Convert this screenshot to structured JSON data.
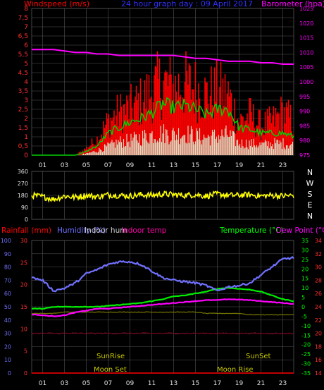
{
  "header": {
    "left": "Windspeed (m/s)",
    "center": "24 hour graph day : 09 April 2017",
    "right": "Barometer (hpa)"
  },
  "colors": {
    "red": "#ff0000",
    "green": "#00d000",
    "white": "#e0ffe0",
    "magenta": "#ff00ff",
    "yellow": "#ffff00",
    "blue": "#7070ff",
    "olive": "#707000",
    "grid": "#555555"
  },
  "x_hours": [
    "01",
    "03",
    "05",
    "07",
    "09",
    "11",
    "13",
    "15",
    "17",
    "19",
    "21",
    "23"
  ],
  "wind": {
    "y_ticks": [
      "0",
      "0,5",
      "1",
      "1,5",
      "2",
      "2,5",
      "3",
      "3,5",
      "4",
      "4,5",
      "5",
      "5,5",
      "6",
      "6,5",
      "7",
      "7,5",
      "8"
    ],
    "baro_ticks": [
      "975",
      "980",
      "985",
      "990",
      "995",
      "1000",
      "1005",
      "1010",
      "1015",
      "1020",
      "1025"
    ]
  },
  "direction": {
    "ticks": [
      "0",
      "90",
      "180",
      "270",
      "360"
    ],
    "compass": [
      "N",
      "W",
      "S",
      "E",
      "N"
    ]
  },
  "lower": {
    "left_label_1": "Rainfall (mm)",
    "left_label_2": "Humidity (%)",
    "left_label_3": "Indoor hum",
    "left_label_4": "Indoor temp",
    "right_label_1": "Temperature (°C)",
    "right_label_2": "Dew Point (°C)",
    "rain_ticks": [
      "0",
      "5",
      "10",
      "15",
      "20",
      "25",
      "30"
    ],
    "hum_ticks": [
      "0",
      "10",
      "20",
      "30",
      "40",
      "50",
      "60",
      "70",
      "80",
      "90",
      "100"
    ],
    "temp_ticks": [
      "-35",
      "-30",
      "-25",
      "-20",
      "-15",
      "-10",
      "-5",
      "0",
      "5",
      "10",
      "15",
      "20",
      "25",
      "30",
      "35"
    ],
    "indoor_ticks": [
      "14",
      "16",
      "18",
      "20",
      "22",
      "24",
      "26",
      "28",
      "30",
      "32",
      "34"
    ],
    "sunrise": "SunRise",
    "sunset": "SunSet",
    "moonset": "Moon Set",
    "moonrise": "Moon Rise"
  },
  "chart_data": [
    {
      "type": "line",
      "title": "24 hour graph day : 09 April 2017",
      "ylabel": "Windspeed (m/s)",
      "y2label": "Barometer (hpa)",
      "x": [
        "00",
        "01",
        "02",
        "03",
        "04",
        "05",
        "06",
        "07",
        "08",
        "09",
        "10",
        "11",
        "12",
        "13",
        "14",
        "15",
        "16",
        "17",
        "18",
        "19",
        "20",
        "21",
        "22",
        "23",
        "24"
      ],
      "ylim": [
        0,
        8
      ],
      "y2lim": [
        975,
        1025
      ],
      "series": [
        {
          "name": "Barometer (hpa)",
          "axis": "right",
          "values": [
            1011,
            1011,
            1011,
            1010.5,
            1010,
            1010,
            1009.5,
            1009.5,
            1009,
            1009,
            1009,
            1009,
            1009,
            1009,
            1008.5,
            1008,
            1008,
            1007.5,
            1007,
            1007,
            1007,
            1006.5,
            1006.5,
            1006,
            1006
          ]
        },
        {
          "name": "Gust (m/s)",
          "axis": "left",
          "values": [
            0,
            0,
            0,
            0,
            0,
            0.5,
            1.2,
            2.5,
            3.2,
            3.5,
            4,
            4.8,
            5.5,
            5,
            5.3,
            5,
            4.5,
            4.8,
            4.5,
            2.5,
            3,
            2.2,
            2.5,
            3.2,
            2.5
          ]
        },
        {
          "name": "Average (m/s)",
          "axis": "left",
          "values": [
            0,
            0,
            0,
            0,
            0,
            0.2,
            0.5,
            1.2,
            1.5,
            1.8,
            2,
            2.3,
            2.8,
            2.6,
            2.7,
            2.5,
            2.2,
            2.5,
            2.5,
            1.5,
            1.4,
            1.2,
            1.2,
            1.2,
            1
          ]
        },
        {
          "name": "Wind (m/s)",
          "axis": "left",
          "values": [
            0,
            0,
            0,
            0,
            0,
            0.1,
            0.3,
            0.6,
            0.9,
            1,
            1.2,
            1.4,
            1.5,
            1.4,
            1.5,
            1.3,
            1.2,
            1.3,
            1.4,
            0.8,
            0.8,
            0.7,
            0.8,
            0.8,
            0.7
          ]
        }
      ]
    },
    {
      "type": "line",
      "ylabel": "Wind direction",
      "x": [
        "00",
        "01",
        "02",
        "03",
        "04",
        "05",
        "06",
        "07",
        "08",
        "09",
        "10",
        "11",
        "12",
        "13",
        "14",
        "15",
        "16",
        "17",
        "18",
        "19",
        "20",
        "21",
        "22",
        "23",
        "24"
      ],
      "ylim": [
        0,
        360
      ],
      "series": [
        {
          "name": "Direction (deg)",
          "values": [
            180,
            170,
            150,
            175,
            165,
            180,
            170,
            185,
            180,
            175,
            185,
            180,
            190,
            185,
            180,
            185,
            175,
            190,
            180,
            180,
            185,
            175,
            180,
            175,
            180
          ]
        }
      ]
    },
    {
      "type": "line",
      "x": [
        "00",
        "01",
        "02",
        "03",
        "04",
        "05",
        "06",
        "07",
        "08",
        "09",
        "10",
        "11",
        "12",
        "13",
        "14",
        "15",
        "16",
        "17",
        "18",
        "19",
        "20",
        "21",
        "22",
        "23",
        "24"
      ],
      "series": [
        {
          "name": "Humidity (%)",
          "axis": "humidity",
          "ylim": [
            0,
            100
          ],
          "values": [
            72,
            70,
            62,
            64,
            68,
            75,
            78,
            82,
            84,
            84,
            82,
            77,
            72,
            70,
            69,
            68,
            66,
            62,
            65,
            66,
            68,
            74,
            80,
            86,
            87
          ]
        },
        {
          "name": "Temperature (°C)",
          "axis": "temperature",
          "ylim": [
            -35,
            35
          ],
          "values": [
            -1,
            -1,
            0,
            0,
            0,
            0,
            0,
            0.5,
            1,
            1.5,
            2,
            3,
            4,
            5.5,
            6,
            7,
            8,
            9.5,
            10,
            9.5,
            9,
            8,
            6,
            4,
            3
          ]
        },
        {
          "name": "Dew Point (°C)",
          "axis": "temperature",
          "ylim": [
            -35,
            35
          ],
          "values": [
            -4,
            -4.5,
            -5,
            -4.5,
            -3,
            -2,
            -1,
            -1,
            -0.5,
            0,
            0.5,
            1,
            1.5,
            2,
            2.5,
            3,
            3.5,
            3.5,
            4,
            3.8,
            3.5,
            3,
            2.5,
            2,
            1.5
          ]
        },
        {
          "name": "Indoor hum",
          "axis": "humidity",
          "ylim": [
            0,
            100
          ],
          "values": [
            45,
            45,
            45,
            46,
            46,
            46,
            46,
            46,
            46,
            46,
            46,
            46,
            46,
            46,
            46,
            46,
            45,
            45,
            45,
            45,
            44,
            44,
            44,
            44,
            44
          ]
        },
        {
          "name": "Indoor temp",
          "axis": "indoor",
          "ylim": [
            14,
            34
          ],
          "values": [
            20,
            20,
            20,
            20,
            20,
            20,
            20,
            20,
            20,
            20,
            20,
            20,
            20,
            20,
            20,
            20,
            20,
            20,
            20,
            20,
            20,
            20,
            20,
            20,
            20
          ]
        },
        {
          "name": "Rainfall (mm)",
          "axis": "rain",
          "ylim": [
            0,
            30
          ],
          "values": [
            0,
            0,
            0,
            0,
            0,
            0,
            0,
            0,
            0,
            0,
            0,
            0,
            0,
            0,
            0,
            0,
            0,
            0,
            0,
            0,
            0,
            0,
            0,
            0,
            0
          ]
        }
      ]
    }
  ]
}
